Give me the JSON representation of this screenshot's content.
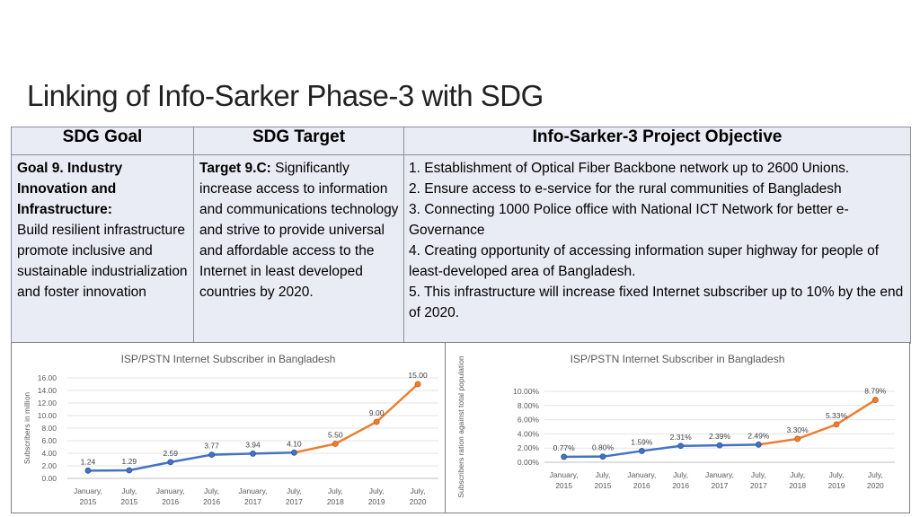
{
  "page": {
    "title": "Linking of Info-Sarker Phase-3 with SDG"
  },
  "table": {
    "headers": [
      "SDG Goal",
      "SDG Target",
      "Info-Sarker-3 Project Objective"
    ],
    "goal": {
      "title_bold": "Goal 9. Industry Innovation and Infrastructure:",
      "text": "Build resilient infrastructure promote inclusive and sustainable industrialization and foster innovation"
    },
    "target": {
      "title_bold": "Target 9.C:",
      "text": "Significantly increase access to information and communications technology and strive to provide universal and affordable access to the Internet in least developed countries by 2020."
    },
    "objectives": [
      "1. Establishment of Optical Fiber Backbone network up to 2600 Unions.",
      "2. Ensure access to e-service for the rural communities of Bangladesh",
      "3. Connecting 1000 Police office with National ICT Network for better e-Governance",
      "4. Creating opportunity of accessing information super highway for people of least-developed area of Bangladesh.",
      "5. This infrastructure will increase fixed Internet subscriber up to 10% by the end of 2020."
    ]
  },
  "chart_data": [
    {
      "type": "line",
      "title": "ISP/PSTN Internet Subscriber in Bangladesh",
      "xlabel": "",
      "ylabel": "Subscribers in million",
      "categories": [
        "January, 2015",
        "July, 2015",
        "January, 2016",
        "July, 2016",
        "January, 2017",
        "July, 2017",
        "July, 2018",
        "July, 2019",
        "July, 2020"
      ],
      "values": [
        1.24,
        1.29,
        2.59,
        3.77,
        3.94,
        4.1,
        5.5,
        9.0,
        15.0
      ],
      "data_labels": [
        "1.24",
        "1.29",
        "2.59",
        "3.77",
        "3.94",
        "4.10",
        "5.50",
        "9.00",
        "15.00"
      ],
      "ylim": [
        0,
        16
      ],
      "yticks": [
        "0.00",
        "2.00",
        "4.00",
        "6.00",
        "8.00",
        "10.00",
        "12.00",
        "14.00",
        "16.00"
      ],
      "actual_until_index": 5,
      "grid": true,
      "colors": {
        "actual": "#4472c4",
        "projected": "#ed7d31"
      }
    },
    {
      "type": "line",
      "title": "ISP/PSTN Internet Subscriber in Bangladesh",
      "xlabel": "",
      "ylabel": "Subscribers ration against total population",
      "categories": [
        "January, 2015",
        "July, 2015",
        "January, 2016",
        "July, 2016",
        "January, 2017",
        "July, 2017",
        "July, 2018",
        "July, 2019",
        "July, 2020"
      ],
      "values": [
        0.77,
        0.8,
        1.59,
        2.31,
        2.39,
        2.49,
        3.3,
        5.33,
        8.79
      ],
      "data_labels": [
        "0.77%",
        "0.80%",
        "1.59%",
        "2.31%",
        "2.39%",
        "2.49%",
        "3.30%",
        "5.33%",
        "8.79%"
      ],
      "ylim": [
        0,
        10
      ],
      "yticks": [
        "0.00%",
        "2.00%",
        "4.00%",
        "6.00%",
        "8.00%",
        "10.00%"
      ],
      "actual_until_index": 5,
      "grid": true,
      "colors": {
        "actual": "#4472c4",
        "projected": "#ed7d31"
      }
    }
  ]
}
